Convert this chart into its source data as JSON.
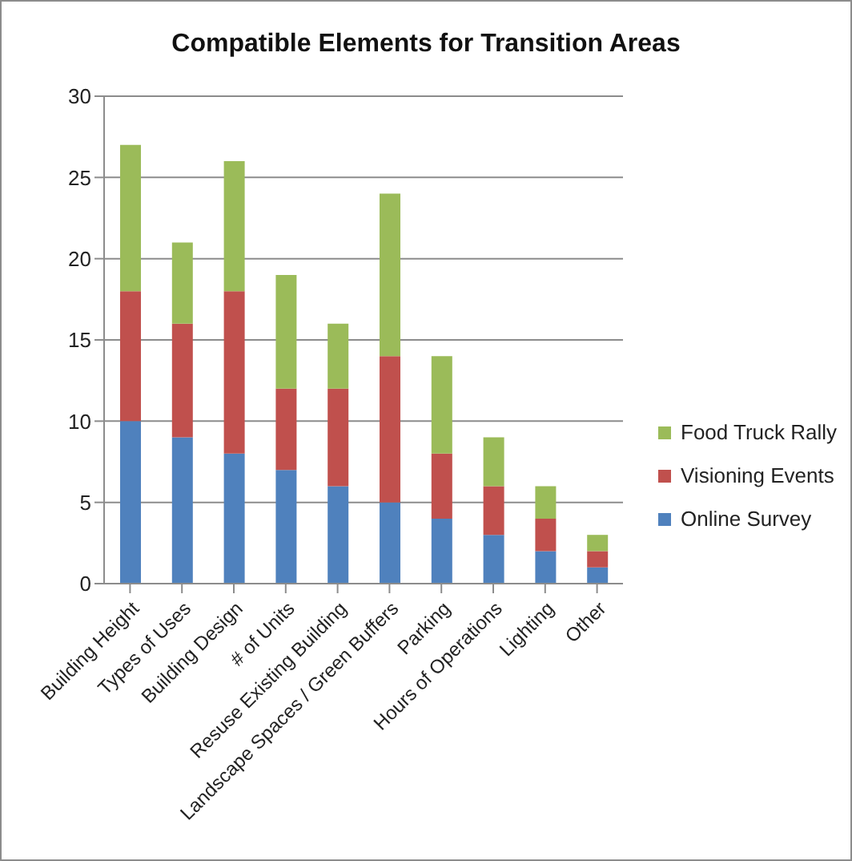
{
  "chart_data": {
    "type": "bar",
    "title": "Compatible Elements for Transition Areas",
    "categories": [
      "Building Height",
      "Types of Uses",
      "Building Design",
      "# of Units",
      "Resuse Existing Building",
      "Landscape Spaces / Green Buffers",
      "Parking",
      "Hours of Operations",
      "Lighting",
      "Other"
    ],
    "series": [
      {
        "name": "Online Survey",
        "color": "#4f81bd",
        "values": [
          10,
          9,
          8,
          7,
          6,
          5,
          4,
          3,
          2,
          1
        ]
      },
      {
        "name": "Visioning Events",
        "color": "#c0504d",
        "values": [
          8,
          7,
          10,
          5,
          6,
          9,
          4,
          3,
          2,
          1
        ]
      },
      {
        "name": "Food Truck Rally",
        "color": "#9bbb59",
        "values": [
          9,
          5,
          8,
          7,
          4,
          10,
          6,
          3,
          2,
          1
        ]
      }
    ],
    "stacked": true,
    "ylim": [
      0,
      30
    ],
    "yticks": [
      0,
      5,
      10,
      15,
      20,
      25,
      30
    ],
    "grid": "y",
    "legend": "right"
  }
}
